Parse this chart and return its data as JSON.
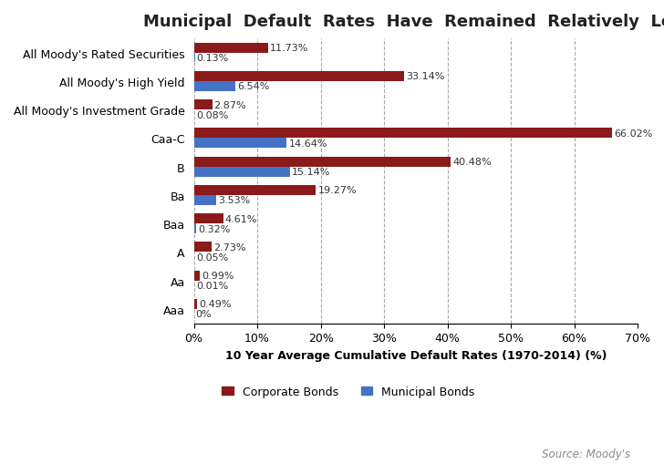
{
  "title": "Municipal  Default  Rates  Have  Remained  Relatively  Low",
  "categories": [
    "All Moody's Rated Securities",
    "All Moody's High Yield",
    "All Moody's Investment Grade",
    "Caa-C",
    "B",
    "Ba",
    "Baa",
    "A",
    "Aa",
    "Aaa"
  ],
  "corporate": [
    11.73,
    33.14,
    2.87,
    66.02,
    40.48,
    19.27,
    4.61,
    2.73,
    0.99,
    0.49
  ],
  "municipal": [
    0.13,
    6.54,
    0.08,
    14.64,
    15.14,
    3.53,
    0.32,
    0.05,
    0.01,
    0.0
  ],
  "corporate_color": "#8B1A1A",
  "municipal_color": "#4472C4",
  "xlabel": "10 Year Average Cumulative Default Rates (1970-2014) (%)",
  "xlim": [
    0,
    70
  ],
  "xticks": [
    0,
    10,
    20,
    30,
    40,
    50,
    60,
    70
  ],
  "xtick_labels": [
    "0%",
    "10%",
    "20%",
    "30%",
    "40%",
    "50%",
    "60%",
    "70%"
  ],
  "legend_labels": [
    "Corporate Bonds",
    "Municipal Bonds"
  ],
  "source_text": "Source: Moody's",
  "background_color": "#FFFFFF",
  "title_fontsize": 13,
  "label_fontsize": 9,
  "bar_height": 0.35,
  "annotation_fontsize": 8
}
